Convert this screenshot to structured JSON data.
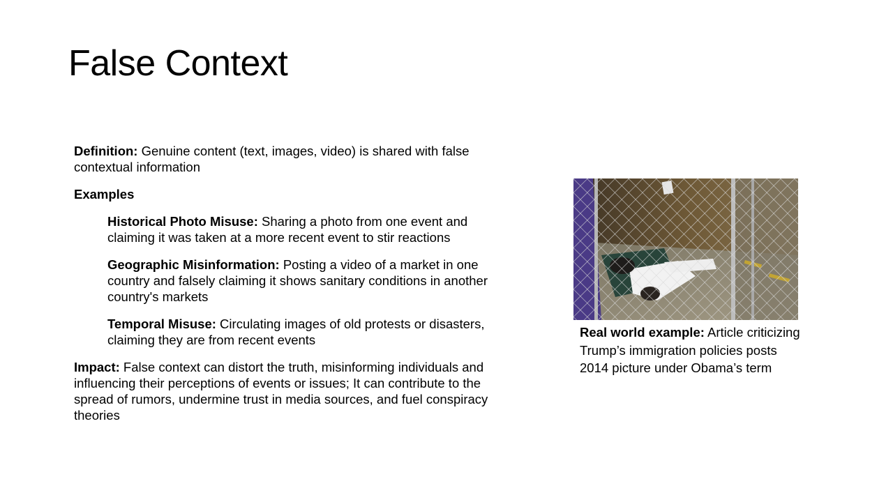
{
  "slide": {
    "title": "False Context",
    "definition": {
      "label": "Definition:",
      "text": " Genuine content (text, images, video) is shared with false contextual information"
    },
    "examples_heading": "Examples",
    "examples": [
      {
        "label": "Historical Photo Misuse:",
        "text": " Sharing a photo from one event and claiming it was taken at a more recent event to stir reactions"
      },
      {
        "label": "Geographic Misinformation:",
        "text": " Posting a video of a market in one country and falsely claiming it shows sanitary conditions in another country's markets"
      },
      {
        "label": "Temporal Misuse:",
        "text": " Circulating images of old protests or disasters, claiming they are from recent events"
      }
    ],
    "impact": {
      "label": "Impact:",
      "text": " False context can distort the truth, misinforming individuals and influencing their perceptions of events or issues; It can contribute to the spread of rumors, undermine trust in media sources, and fuel conspiracy theories"
    },
    "photo": {
      "icon": "photo-image",
      "colors": {
        "floor": "#8c8470",
        "wall": "#5a4a32",
        "fence": "#c9c9c9",
        "purple": "#4a3a86",
        "white": "#f2f2f2"
      }
    },
    "caption": {
      "label": "Real world example:",
      "text": " Article criticizing  Trump’s immigration policies posts 2014 picture under Obama’s term"
    }
  }
}
